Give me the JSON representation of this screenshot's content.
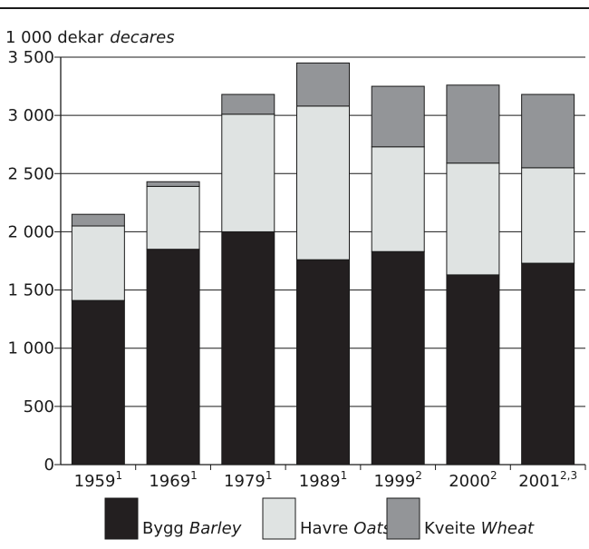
{
  "chart_data": {
    "type": "bar",
    "stacked": true,
    "ylabel": {
      "main": "1 000 dekar",
      "italic": "decares"
    },
    "ylim": [
      0,
      3500
    ],
    "yticks": [
      {
        "value": 0,
        "label": "0"
      },
      {
        "value": 500,
        "label": "500"
      },
      {
        "value": 1000,
        "label": "1 000"
      },
      {
        "value": 1500,
        "label": "1 500"
      },
      {
        "value": 2000,
        "label": "2 000"
      },
      {
        "value": 2500,
        "label": "2 500"
      },
      {
        "value": 3000,
        "label": "3 000"
      },
      {
        "value": 3500,
        "label": "3 500"
      }
    ],
    "categories": [
      {
        "label": "1959",
        "sup": "1"
      },
      {
        "label": "1969",
        "sup": "1"
      },
      {
        "label": "1979",
        "sup": "1"
      },
      {
        "label": "1989",
        "sup": "1"
      },
      {
        "label": "1999",
        "sup": "2"
      },
      {
        "label": "2000",
        "sup": "2"
      },
      {
        "label": "2001",
        "sup": "2,3"
      }
    ],
    "series": [
      {
        "name": "Bygg",
        "name_italic": "Barley",
        "color": "#231f20",
        "values": [
          1410,
          1850,
          2000,
          1760,
          1830,
          1630,
          1730
        ]
      },
      {
        "name": "Havre",
        "name_italic": "Oats",
        "color": "#dfe3e2",
        "values": [
          640,
          540,
          1010,
          1320,
          900,
          960,
          820
        ]
      },
      {
        "name": "Kveite",
        "name_italic": "Wheat",
        "color": "#939598",
        "values": [
          100,
          40,
          170,
          370,
          520,
          670,
          630
        ]
      }
    ],
    "grid": true,
    "legend_position": "bottom"
  }
}
